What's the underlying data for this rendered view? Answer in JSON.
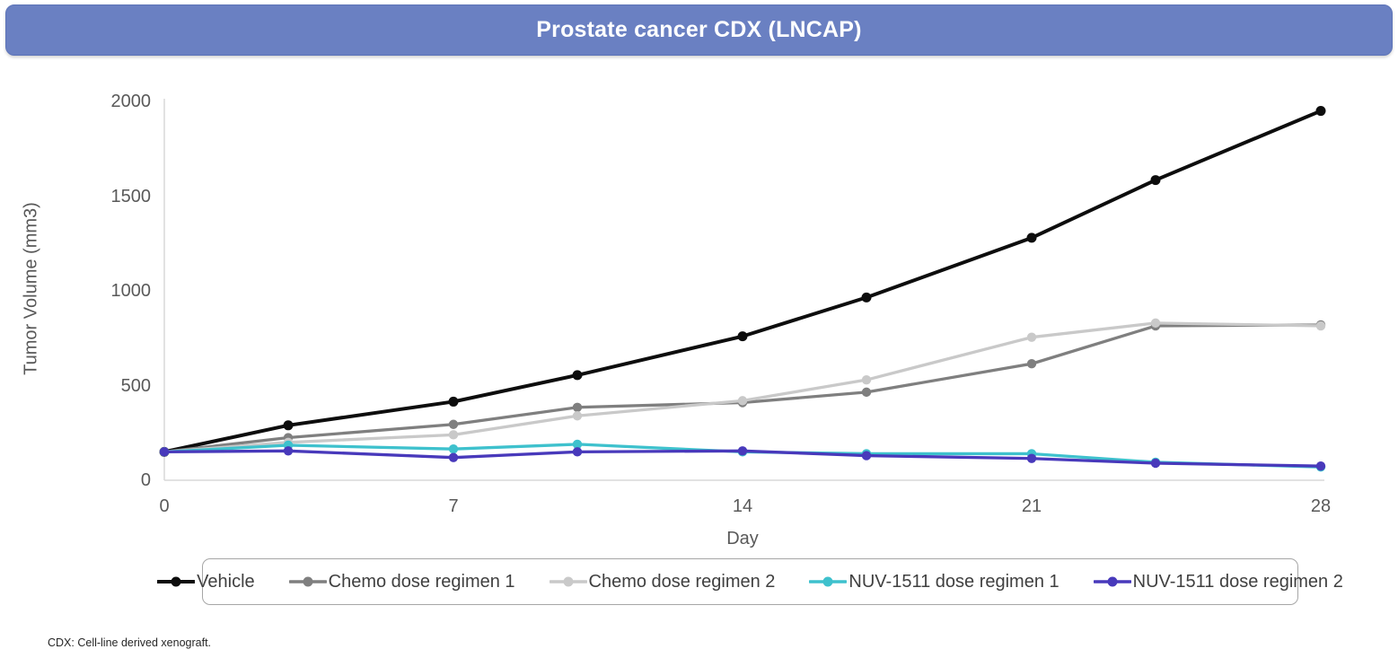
{
  "title": "Prostate cancer CDX (LNCAP)",
  "footnote": "CDX: Cell-line derived xenograft.",
  "colors": {
    "banner": "#6A80C2",
    "banner_text": "#FFFFFF",
    "axis_line": "#D9D9D9",
    "axis_text": "#595959",
    "legend_border": "#A6A6A6",
    "legend_text": "#404040"
  },
  "chart_data": {
    "type": "line",
    "title": "Prostate cancer CDX (LNCAP)",
    "xlabel": "Day",
    "ylabel": "Tumor Volume (mm3)",
    "x": [
      0,
      3,
      7,
      10,
      14,
      17,
      21,
      24,
      28
    ],
    "xticks": [
      0,
      7,
      14,
      21,
      28
    ],
    "yticks": [
      0,
      500,
      1000,
      1500,
      2000
    ],
    "xlim": [
      0,
      28
    ],
    "ylim": [
      0,
      2000
    ],
    "grid": false,
    "legend_position": "bottom",
    "series": [
      {
        "name": "Vehicle",
        "color": "#0D0D0D",
        "values": [
          150,
          290,
          415,
          555,
          760,
          965,
          1280,
          1585,
          1950
        ]
      },
      {
        "name": "Chemo dose regimen 1",
        "color": "#7F7F7F",
        "values": [
          150,
          225,
          295,
          385,
          410,
          465,
          615,
          815,
          820
        ]
      },
      {
        "name": "Chemo dose regimen 2",
        "color": "#C9C9C9",
        "values": [
          150,
          200,
          240,
          340,
          420,
          530,
          755,
          830,
          815
        ]
      },
      {
        "name": "NUV-1511 dose regimen 1",
        "color": "#3EC1CD",
        "values": [
          150,
          185,
          165,
          190,
          150,
          140,
          140,
          95,
          70
        ]
      },
      {
        "name": "NUV-1511 dose regimen 2",
        "color": "#4839BB",
        "values": [
          150,
          155,
          120,
          150,
          155,
          130,
          115,
          90,
          75
        ]
      }
    ]
  }
}
